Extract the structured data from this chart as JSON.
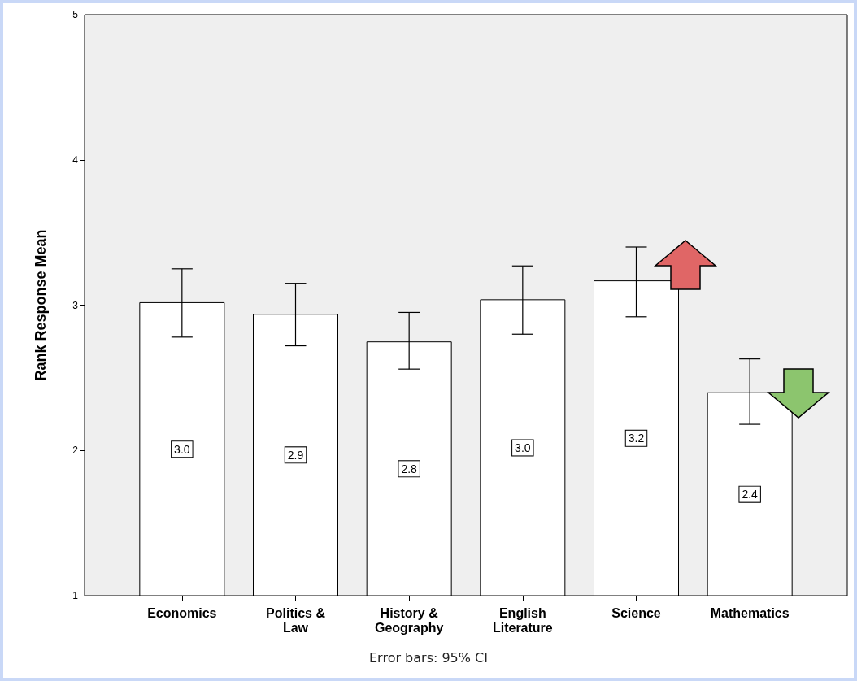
{
  "chart_data": {
    "type": "bar",
    "categories": [
      "Economics",
      "Politics & Law",
      "History & Geography",
      "English Literature",
      "Science",
      "Mathematics"
    ],
    "values": [
      3.02,
      2.94,
      2.75,
      3.04,
      3.17,
      2.4
    ],
    "value_labels": [
      "3.0",
      "2.9",
      "2.8",
      "3.0",
      "3.2",
      "2.4"
    ],
    "errors": [
      [
        2.78,
        3.25
      ],
      [
        2.72,
        3.15
      ],
      [
        2.56,
        2.95
      ],
      [
        2.8,
        3.27
      ],
      [
        2.92,
        3.4
      ],
      [
        2.18,
        2.63
      ]
    ],
    "color": "#ffffff",
    "ylabel": "Rank Response Mean",
    "ylim": [
      1,
      5
    ],
    "yticks": [
      1,
      2,
      3,
      4,
      5
    ],
    "grid": false,
    "annotations": [
      "Error bars: 95% CI"
    ]
  }
}
